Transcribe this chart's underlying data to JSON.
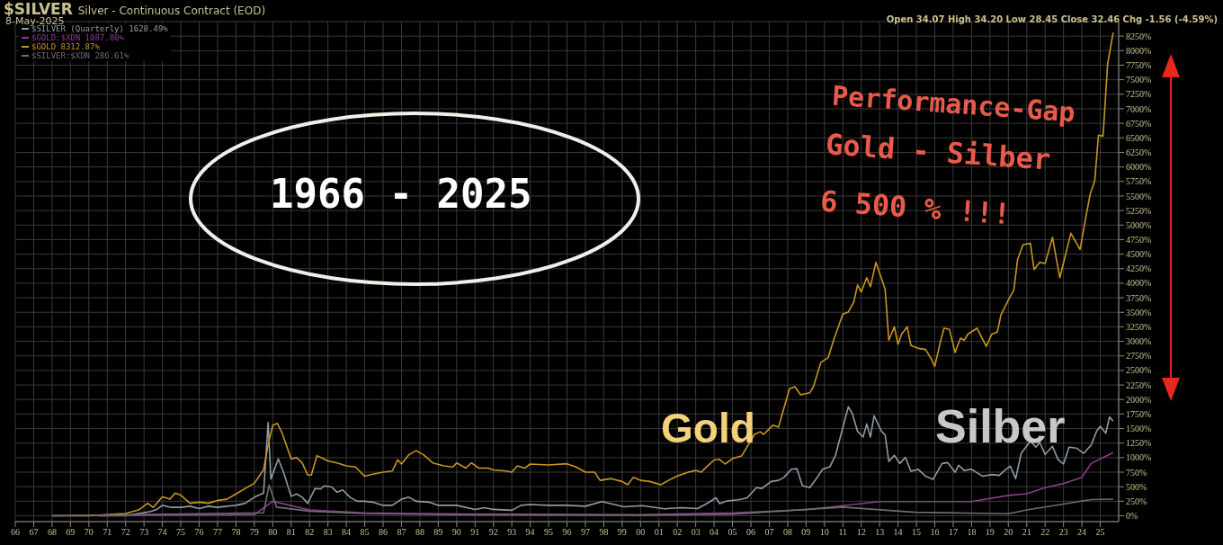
{
  "chart_data": {
    "type": "line",
    "title": "$SILVER",
    "subtitle": "Silver - Continuous Contract (EOD)",
    "annotations": [
      "8-May-2025",
      "Open 34.07  High 34.20  Low 28.45  Close 32.46  Chg -1.56 (-4.59%)",
      "1966 - 2025",
      "Performance-Gap",
      "Gold - Silber",
      "6 500 % !!!",
      "Gold",
      "Silber"
    ],
    "series": [
      {
        "name": "$SILVER (Quarterly) 1628.49%",
        "color": "#8e9ca6",
        "x": [
          1970.5,
          1971.5,
          1972,
          1972.7,
          1973.3,
          1973.7,
          1974,
          1974.5,
          1975,
          1975.5,
          1976,
          1976.5,
          1977,
          1977.5,
          1978,
          1978.5,
          1979,
          1979.5,
          1979.75,
          1979.9,
          1980.3,
          1980.6,
          1981,
          1981.3,
          1981.6,
          1981.9,
          1982.3,
          1982.6,
          1982.8,
          1983.2,
          1983.5,
          1983.8,
          1984.2,
          1984.6,
          1985,
          1985.5,
          1986,
          1986.5,
          1987,
          1987.4,
          1987.8,
          1988.5,
          1989,
          1990,
          1991,
          1991.5,
          1992,
          1993,
          1993.5,
          1994,
          1995,
          1996,
          1997,
          1997.9,
          1999.1,
          2000.1,
          2001.3,
          2002.2,
          2003.1,
          2003.6,
          2004.1,
          2004.3,
          2004.7,
          2005.4,
          2005.8,
          2006.3,
          2006.6,
          2007.1,
          2007.5,
          2007.8,
          2008.2,
          2008.5,
          2008.8,
          2009.2,
          2009.5,
          2009.9,
          2010.3,
          2010.6,
          2011.3,
          2011.5,
          2011.8,
          2012.1,
          2012.3,
          2012.5,
          2012.7,
          2013.1,
          2013.3,
          2013.5,
          2013.8,
          2014.1,
          2014.4,
          2014.7,
          2015.1,
          2015.5,
          2015.9,
          2016.4,
          2016.7,
          2017.1,
          2017.3,
          2017.6,
          2018,
          2018.6,
          2019.1,
          2019.5,
          2019.8,
          2020.1,
          2020.4,
          2020.7,
          2021.2,
          2021.5,
          2021.7,
          2022,
          2022.4,
          2022.7,
          2023,
          2023.3,
          2023.7,
          2024.1,
          2024.5,
          2024.8,
          2025,
          2025.3,
          2025.5,
          2025.7
        ],
        "values": [
          0,
          0,
          0,
          40,
          70,
          110,
          180,
          145,
          145,
          165,
          125,
          165,
          145,
          165,
          180,
          215,
          320,
          390,
          1605,
          630,
          980,
          735,
          335,
          375,
          320,
          215,
          470,
          460,
          515,
          495,
          405,
          445,
          320,
          250,
          250,
          230,
          180,
          180,
          285,
          320,
          250,
          235,
          180,
          180,
          110,
          140,
          110,
          95,
          180,
          195,
          180,
          180,
          165,
          245,
          155,
          175,
          120,
          140,
          125,
          210,
          310,
          210,
          255,
          280,
          310,
          485,
          470,
          590,
          610,
          660,
          800,
          810,
          520,
          485,
          610,
          800,
          845,
          1040,
          1875,
          1770,
          1455,
          1355,
          1580,
          1355,
          1720,
          1455,
          1390,
          935,
          1040,
          900,
          1005,
          765,
          800,
          680,
          625,
          900,
          915,
          750,
          870,
          780,
          800,
          680,
          710,
          695,
          780,
          855,
          640,
          1075,
          1285,
          1180,
          1265,
          1055,
          1195,
          970,
          890,
          1180,
          1165,
          1075,
          1215,
          1455,
          1540,
          1420,
          1700,
          1628
        ]
      },
      {
        "name": "$GOLD:$XDN 1087.80%",
        "color": "#8e3a8e",
        "x": [
          1968,
          1979,
          1980,
          1982,
          1985,
          1990,
          2000,
          2005,
          2009,
          2012,
          2013,
          2018,
          2020,
          2021,
          2022,
          2023,
          2024,
          2024.5,
          2025.7
        ],
        "values": [
          0,
          20,
          250,
          100,
          50,
          30,
          20,
          50,
          105,
          210,
          245,
          245,
          350,
          380,
          485,
          555,
          660,
          900,
          1088
        ]
      },
      {
        "name": "$GOLD 8312.87%",
        "color": "#c8961e",
        "x": [
          1968,
          1970,
          1971.5,
          1972,
          1972.7,
          1973.2,
          1973.5,
          1974,
          1974.4,
          1974.7,
          1975,
          1975.5,
          1976,
          1976.5,
          1977,
          1977.5,
          1978,
          1978.5,
          1979,
          1979.5,
          1979.75,
          1980,
          1980.25,
          1980.5,
          1981,
          1981.3,
          1981.6,
          1981.9,
          1982.1,
          1982.4,
          1983,
          1983.5,
          1984,
          1984.5,
          1985,
          1985.5,
          1986,
          1986.5,
          1986.8,
          1987,
          1987.4,
          1987.8,
          1988.2,
          1988.7,
          1989.3,
          1989.8,
          1990,
          1990.5,
          1990.8,
          1991.2,
          1991.7,
          1992,
          1992.7,
          1993,
          1993.3,
          1993.7,
          1994,
          1995,
          1996,
          1996.5,
          1997,
          1997.5,
          1997.8,
          1998.4,
          1999,
          1999.3,
          1999.6,
          2000,
          2000.5,
          2001.1,
          2001.7,
          2002.1,
          2002.6,
          2003,
          2003.3,
          2003.6,
          2004,
          2004.3,
          2004.6,
          2005,
          2005.5,
          2006.2,
          2006.5,
          2006.7,
          2007.2,
          2007.5,
          2008.1,
          2008.4,
          2008.7,
          2009.2,
          2009.4,
          2009.8,
          2010.2,
          2010.5,
          2011,
          2011.3,
          2011.6,
          2011.8,
          2012,
          2012.3,
          2012.5,
          2012.8,
          2013.3,
          2013.5,
          2013.8,
          2014,
          2014.2,
          2014.5,
          2014.7,
          2015.1,
          2015.5,
          2015.8,
          2016,
          2016.3,
          2016.5,
          2016.8,
          2017.1,
          2017.4,
          2017.6,
          2017.8,
          2018.3,
          2018.8,
          2019.1,
          2019.4,
          2019.6,
          2020,
          2020.3,
          2020.5,
          2020.8,
          2021.2,
          2021.4,
          2021.7,
          2022,
          2022.4,
          2022.8,
          2023.4,
          2023.9,
          2024.2,
          2024.45,
          2024.7,
          2024.9,
          2025.15,
          2025.4,
          2025.7
        ],
        "values": [
          0,
          0,
          30,
          40,
          100,
          215,
          145,
          330,
          285,
          390,
          355,
          215,
          235,
          215,
          265,
          285,
          375,
          470,
          560,
          790,
          1220,
          1555,
          1590,
          1430,
          980,
          1000,
          910,
          700,
          700,
          1035,
          945,
          910,
          860,
          840,
          680,
          720,
          750,
          770,
          965,
          890,
          1050,
          1120,
          1050,
          910,
          860,
          840,
          910,
          820,
          910,
          820,
          820,
          790,
          770,
          750,
          860,
          820,
          890,
          875,
          895,
          840,
          750,
          750,
          610,
          640,
          590,
          535,
          660,
          610,
          590,
          535,
          640,
          695,
          750,
          780,
          750,
          845,
          960,
          970,
          890,
          985,
          1030,
          1400,
          1445,
          1400,
          1560,
          1525,
          2185,
          2220,
          2080,
          2115,
          2220,
          2635,
          2720,
          3020,
          3470,
          3505,
          3680,
          3970,
          3850,
          4095,
          3940,
          4360,
          3900,
          3020,
          3250,
          2950,
          3125,
          3250,
          2930,
          2880,
          2860,
          2705,
          2570,
          2985,
          3225,
          3205,
          2810,
          3055,
          3020,
          3125,
          3225,
          2915,
          3125,
          3160,
          3455,
          3710,
          3885,
          4405,
          4665,
          4685,
          4235,
          4360,
          4340,
          4790,
          4095,
          4860,
          4580,
          5115,
          5530,
          5765,
          6547,
          6530,
          7770,
          8313
        ]
      },
      {
        "name": "$SILVER:$XDN 286.61%",
        "color": "#6e6e6e",
        "x": [
          1968,
          1979.5,
          1979.8,
          1980.2,
          1982,
          1985,
          1990,
          2000,
          2005,
          2011,
          2015,
          2020,
          2021,
          2024.5,
          2025.7
        ],
        "values": [
          0,
          50,
          530,
          150,
          80,
          40,
          20,
          10,
          30,
          150,
          60,
          35,
          100,
          280,
          287
        ]
      }
    ],
    "xlim": [
      1966,
      2026
    ],
    "xticks": [
      {
        "value": 1966,
        "label": "66"
      },
      {
        "value": 1967,
        "label": "67"
      },
      {
        "value": 1968,
        "label": "68"
      },
      {
        "value": 1969,
        "label": "69"
      },
      {
        "value": 1970,
        "label": "70"
      },
      {
        "value": 1971,
        "label": "71"
      },
      {
        "value": 1972,
        "label": "72"
      },
      {
        "value": 1973,
        "label": "73"
      },
      {
        "value": 1974,
        "label": "74"
      },
      {
        "value": 1975,
        "label": "75"
      },
      {
        "value": 1976,
        "label": "76"
      },
      {
        "value": 1977,
        "label": "77"
      },
      {
        "value": 1978,
        "label": "78"
      },
      {
        "value": 1979,
        "label": "79"
      },
      {
        "value": 1980,
        "label": "80"
      },
      {
        "value": 1981,
        "label": "81"
      },
      {
        "value": 1982,
        "label": "82"
      },
      {
        "value": 1983,
        "label": "83"
      },
      {
        "value": 1984,
        "label": "84"
      },
      {
        "value": 1985,
        "label": "85"
      },
      {
        "value": 1986,
        "label": "86"
      },
      {
        "value": 1987,
        "label": "87"
      },
      {
        "value": 1988,
        "label": "88"
      },
      {
        "value": 1989,
        "label": "89"
      },
      {
        "value": 1990,
        "label": "90"
      },
      {
        "value": 1991,
        "label": "91"
      },
      {
        "value": 1992,
        "label": "92"
      },
      {
        "value": 1993,
        "label": "93"
      },
      {
        "value": 1994,
        "label": "94"
      },
      {
        "value": 1995,
        "label": "95"
      },
      {
        "value": 1996,
        "label": "96"
      },
      {
        "value": 1997,
        "label": "97"
      },
      {
        "value": 1998,
        "label": "98"
      },
      {
        "value": 1999,
        "label": "99"
      },
      {
        "value": 2000,
        "label": "00"
      },
      {
        "value": 2001,
        "label": "01"
      },
      {
        "value": 2002,
        "label": "02"
      },
      {
        "value": 2003,
        "label": "03"
      },
      {
        "value": 2004,
        "label": "04"
      },
      {
        "value": 2005,
        "label": "05"
      },
      {
        "value": 2006,
        "label": "06"
      },
      {
        "value": 2007,
        "label": "07"
      },
      {
        "value": 2008,
        "label": "08"
      },
      {
        "value": 2009,
        "label": "09"
      },
      {
        "value": 2010,
        "label": "10"
      },
      {
        "value": 2011,
        "label": "11"
      },
      {
        "value": 2012,
        "label": "12"
      },
      {
        "value": 2013,
        "label": "13"
      },
      {
        "value": 2014,
        "label": "14"
      },
      {
        "value": 2015,
        "label": "15"
      },
      {
        "value": 2016,
        "label": "16"
      },
      {
        "value": 2017,
        "label": "17"
      },
      {
        "value": 2018,
        "label": "18"
      },
      {
        "value": 2019,
        "label": "19"
      },
      {
        "value": 2020,
        "label": "20"
      },
      {
        "value": 2021,
        "label": "21"
      },
      {
        "value": 2022,
        "label": "22"
      },
      {
        "value": 2023,
        "label": "23"
      },
      {
        "value": 2024,
        "label": "24"
      },
      {
        "value": 2025,
        "label": "25"
      }
    ],
    "ylim": [
      -100,
      8500
    ],
    "yticks": [
      {
        "value": 0,
        "label": "0%"
      },
      {
        "value": 250,
        "label": "250%"
      },
      {
        "value": 500,
        "label": "500%"
      },
      {
        "value": 750,
        "label": "750%"
      },
      {
        "value": 1000,
        "label": "1000%"
      },
      {
        "value": 1250,
        "label": "1250%"
      },
      {
        "value": 1500,
        "label": "1500%"
      },
      {
        "value": 1750,
        "label": "1750%"
      },
      {
        "value": 2000,
        "label": "2000%"
      },
      {
        "value": 2250,
        "label": "2250%"
      },
      {
        "value": 2500,
        "label": "2500%"
      },
      {
        "value": 2750,
        "label": "2750%"
      },
      {
        "value": 3000,
        "label": "3000%"
      },
      {
        "value": 3250,
        "label": "3250%"
      },
      {
        "value": 3500,
        "label": "3500%"
      },
      {
        "value": 3750,
        "label": "3750%"
      },
      {
        "value": 4000,
        "label": "4000%"
      },
      {
        "value": 4250,
        "label": "4250%"
      },
      {
        "value": 4500,
        "label": "4500%"
      },
      {
        "value": 4750,
        "label": "4750%"
      },
      {
        "value": 5000,
        "label": "5000%"
      },
      {
        "value": 5250,
        "label": "5250%"
      },
      {
        "value": 5500,
        "label": "5500%"
      },
      {
        "value": 5750,
        "label": "5750%"
      },
      {
        "value": 6000,
        "label": "6000%"
      },
      {
        "value": 6250,
        "label": "6250%"
      },
      {
        "value": 6500,
        "label": "6500%"
      },
      {
        "value": 6750,
        "label": "6750%"
      },
      {
        "value": 7000,
        "label": "7000%"
      },
      {
        "value": 7250,
        "label": "7250%"
      },
      {
        "value": 7500,
        "label": "7500%"
      },
      {
        "value": 7750,
        "label": "7750%"
      },
      {
        "value": 8000,
        "label": "8000%"
      },
      {
        "value": 8250,
        "label": "8250%"
      }
    ],
    "grid": true,
    "legend": "top left",
    "marker": "none",
    "line_style": "solid"
  }
}
